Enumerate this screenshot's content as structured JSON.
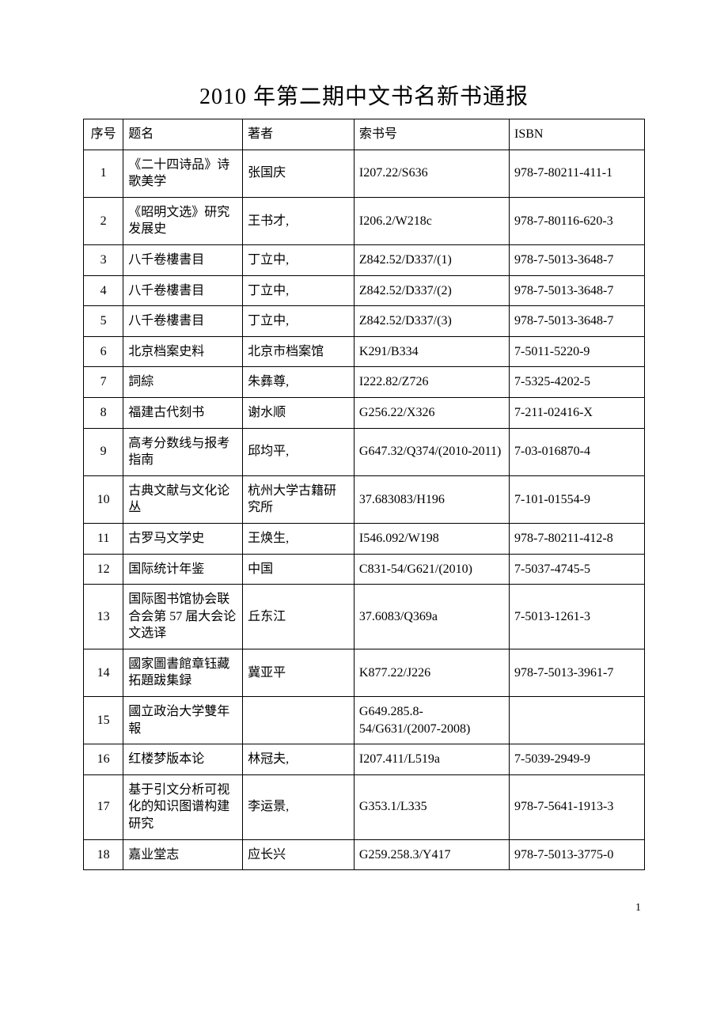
{
  "heading": "2010 年第二期中文书名新书通报",
  "columns": [
    "序号",
    "题名",
    "著者",
    "索书号",
    "ISBN"
  ],
  "rows": [
    {
      "seq": "1",
      "title": "《二十四诗品》诗歌美学",
      "author": "张国庆",
      "call": "I207.22/S636",
      "isbn": "978-7-80211-411-1"
    },
    {
      "seq": "2",
      "title": "《昭明文选》研究发展史",
      "author": "王书才,",
      "call": "I206.2/W218c",
      "isbn": "978-7-80116-620-3"
    },
    {
      "seq": "3",
      "title": "八千卷樓書目",
      "author": "丁立中,",
      "call": "Z842.52/D337/(1)",
      "isbn": "978-7-5013-3648-7"
    },
    {
      "seq": "4",
      "title": "八千卷樓書目",
      "author": "丁立中,",
      "call": "Z842.52/D337/(2)",
      "isbn": "978-7-5013-3648-7"
    },
    {
      "seq": "5",
      "title": "八千卷樓書目",
      "author": "丁立中,",
      "call": "Z842.52/D337/(3)",
      "isbn": "978-7-5013-3648-7"
    },
    {
      "seq": "6",
      "title": "北京档案史料",
      "author": "北京市档案馆",
      "call": "K291/B334",
      "isbn": "7-5011-5220-9"
    },
    {
      "seq": "7",
      "title": "詞綜",
      "author": "朱彝尊,",
      "call": "I222.82/Z726",
      "isbn": "7-5325-4202-5"
    },
    {
      "seq": "8",
      "title": "福建古代刻书",
      "author": "谢水顺",
      "call": "G256.22/X326",
      "isbn": "7-211-02416-X"
    },
    {
      "seq": "9",
      "title": "高考分数线与报考指南",
      "author": "邱均平,",
      "call": "G647.32/Q374/(2010-2011)",
      "isbn": "7-03-016870-4"
    },
    {
      "seq": "10",
      "title": "古典文献与文化论丛",
      "author": "杭州大学古籍研究所",
      "call": "37.683083/H196",
      "isbn": "7-101-01554-9"
    },
    {
      "seq": "11",
      "title": "古罗马文学史",
      "author": "王焕生,",
      "call": "I546.092/W198",
      "isbn": "978-7-80211-412-8"
    },
    {
      "seq": "12",
      "title": "国际统计年鉴",
      "author": "中国",
      "call": "C831-54/G621/(2010)",
      "isbn": "7-5037-4745-5"
    },
    {
      "seq": "13",
      "title": "国际图书馆协会联合会第 57 届大会论文选译",
      "author": "丘东江",
      "call": "37.6083/Q369a",
      "isbn": "7-5013-1261-3"
    },
    {
      "seq": "14",
      "title": "國家圖書館章钰藏拓題跋集録",
      "author": "冀亚平",
      "call": "K877.22/J226",
      "isbn": "978-7-5013-3961-7"
    },
    {
      "seq": "15",
      "title": "國立政治大学雙年報",
      "author": "",
      "call": "G649.285.8-54/G631/(2007-2008)",
      "isbn": ""
    },
    {
      "seq": "16",
      "title": "红楼梦版本论",
      "author": "林冠夫,",
      "call": "I207.411/L519a",
      "isbn": "7-5039-2949-9"
    },
    {
      "seq": "17",
      "title": "基于引文分析可视化的知识图谱构建研究",
      "author": "李运景,",
      "call": "G353.1/L335",
      "isbn": "978-7-5641-1913-3"
    },
    {
      "seq": "18",
      "title": "嘉业堂志",
      "author": "应长兴",
      "call": "G259.258.3/Y417",
      "isbn": "978-7-5013-3775-0"
    }
  ],
  "pageNumber": "1",
  "style": {
    "background_color": "#ffffff",
    "text_color": "#000000",
    "border_color": "#000000",
    "title_fontsize": 28,
    "body_fontsize": 16,
    "font_family": "SimSun"
  }
}
